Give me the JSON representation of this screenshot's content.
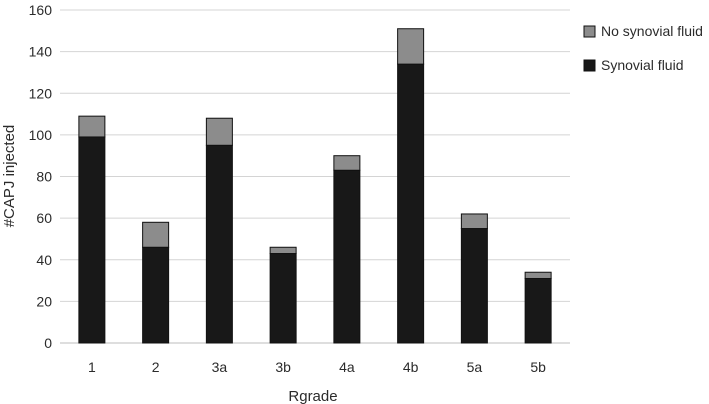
{
  "chart_data": {
    "type": "bar",
    "stacked": true,
    "categories": [
      "1",
      "2",
      "3a",
      "3b",
      "4a",
      "4b",
      "5a",
      "5b"
    ],
    "series": [
      {
        "name": "Synovial fluid",
        "color": "#181818",
        "values": [
          99,
          46,
          95,
          43,
          83,
          134,
          55,
          31
        ]
      },
      {
        "name": "No synovial fluid",
        "color": "#8c8c8c",
        "values": [
          10,
          12,
          13,
          3,
          7,
          17,
          7,
          3
        ]
      }
    ],
    "title": "",
    "xlabel": "Rgrade",
    "ylabel": "#CAPJ injected",
    "ylim": [
      0,
      160
    ],
    "yticks": [
      0,
      20,
      40,
      60,
      80,
      100,
      120,
      140,
      160
    ],
    "grid": true,
    "legend": {
      "placement": "right",
      "entries": [
        "No synovial fluid",
        "Synovial fluid"
      ]
    }
  }
}
